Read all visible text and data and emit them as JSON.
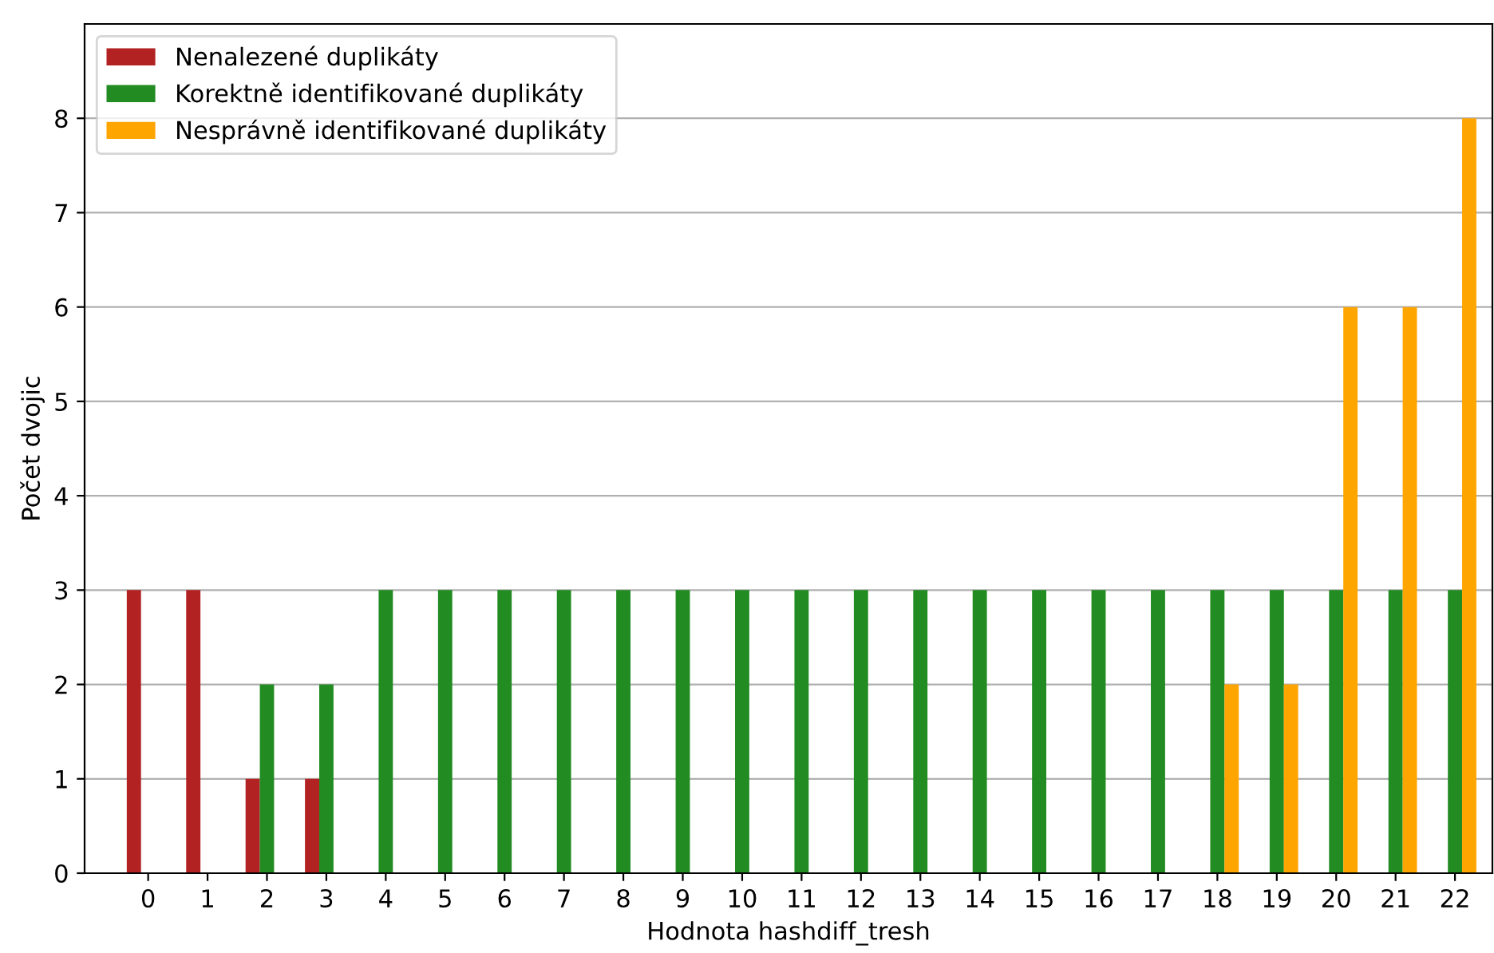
{
  "chart_data": {
    "type": "bar",
    "xlabel": "Hodnota hashdiff_tresh",
    "ylabel": "Počet dvojic",
    "categories": [
      "0",
      "1",
      "2",
      "3",
      "4",
      "5",
      "6",
      "7",
      "8",
      "9",
      "10",
      "11",
      "12",
      "13",
      "14",
      "15",
      "16",
      "17",
      "18",
      "19",
      "20",
      "21",
      "22"
    ],
    "series": [
      {
        "name": "Nenalezené duplikáty",
        "color": "#b22222",
        "values": [
          3,
          3,
          1,
          1,
          0,
          0,
          0,
          0,
          0,
          0,
          0,
          0,
          0,
          0,
          0,
          0,
          0,
          0,
          0,
          0,
          0,
          0,
          0
        ]
      },
      {
        "name": "Korektně identifikované duplikáty",
        "color": "#228b22",
        "values": [
          0,
          0,
          2,
          2,
          3,
          3,
          3,
          3,
          3,
          3,
          3,
          3,
          3,
          3,
          3,
          3,
          3,
          3,
          3,
          3,
          3,
          3,
          3
        ]
      },
      {
        "name": "Nesprávně identifikované duplikáty",
        "color": "#ffa500",
        "values": [
          0,
          0,
          0,
          0,
          0,
          0,
          0,
          0,
          0,
          0,
          0,
          0,
          0,
          0,
          0,
          0,
          0,
          0,
          2,
          2,
          6,
          6,
          8
        ]
      }
    ],
    "ylim": [
      0,
      9
    ],
    "yticks": [
      0,
      1,
      2,
      3,
      4,
      5,
      6,
      7,
      8
    ],
    "grid": "y",
    "legend": "top left"
  }
}
